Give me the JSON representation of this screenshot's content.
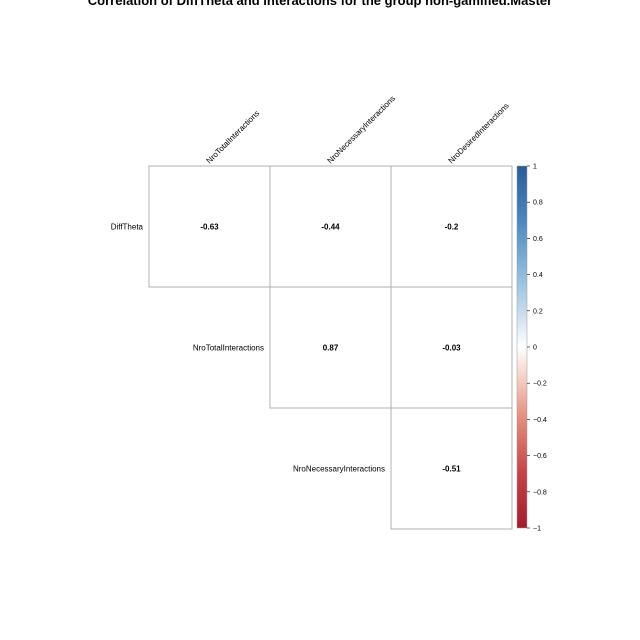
{
  "chart_data": {
    "type": "heatmap",
    "title": "Correlation of DiffTheta and interactions for the group non-gamified.Master",
    "columns": [
      "NroTotalInteractions",
      "NroNecessaryInteractions",
      "NroDesiredInteractions"
    ],
    "rows": [
      "DiffTheta",
      "NroTotalInteractions",
      "NroNecessaryInteractions"
    ],
    "cells": [
      {
        "row": 0,
        "col": 0,
        "value": -0.63,
        "label": "-0.63"
      },
      {
        "row": 0,
        "col": 1,
        "value": -0.44,
        "label": "-0.44"
      },
      {
        "row": 0,
        "col": 2,
        "value": -0.2,
        "label": "-0.2"
      },
      {
        "row": 1,
        "col": 1,
        "value": 0.87,
        "label": "0.87"
      },
      {
        "row": 1,
        "col": 2,
        "value": -0.03,
        "label": "-0.03"
      },
      {
        "row": 2,
        "col": 2,
        "value": -0.51,
        "label": "-0.51"
      }
    ],
    "colorbar": {
      "range": [
        -1,
        1
      ],
      "ticks": [
        {
          "value": 1,
          "label": "1"
        },
        {
          "value": 0.8,
          "label": "0.8"
        },
        {
          "value": 0.6,
          "label": "0.6"
        },
        {
          "value": 0.4,
          "label": "0.4"
        },
        {
          "value": 0.2,
          "label": "0.2"
        },
        {
          "value": 0,
          "label": "0"
        },
        {
          "value": -0.2,
          "label": "−0.2"
        },
        {
          "value": -0.4,
          "label": "−0.4"
        },
        {
          "value": -0.6,
          "label": "−0.6"
        },
        {
          "value": -0.8,
          "label": "−0.8"
        },
        {
          "value": -1,
          "label": "−1"
        }
      ],
      "colors": {
        "negative_end": "#67001F",
        "negative_mid": "#B2182B",
        "negative_light": "#F4A582",
        "neutral": "#FFFFFF",
        "positive_light": "#92C5DE",
        "positive_mid": "#2166AC",
        "positive_end": "#053061"
      }
    },
    "grid": true
  }
}
